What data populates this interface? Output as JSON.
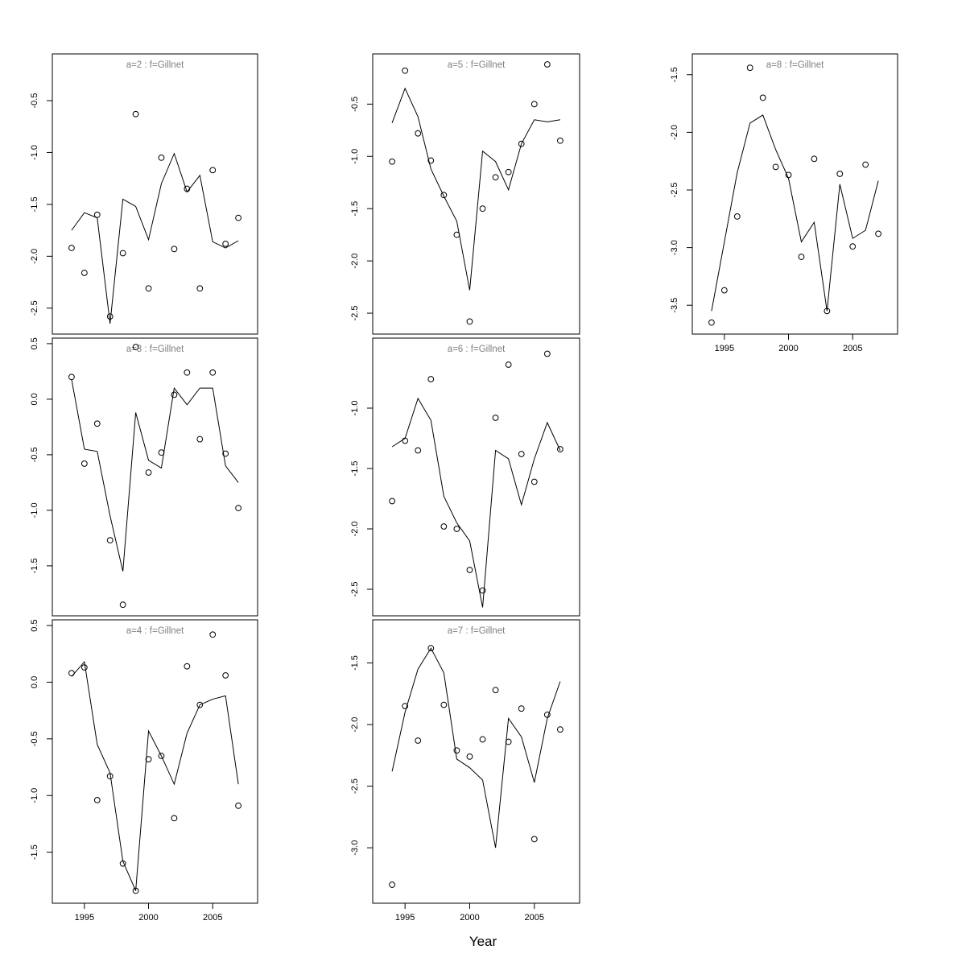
{
  "figure": {
    "background": "#ffffff",
    "title_color": "#808080",
    "line_color": "#000000",
    "point_color": "#000000",
    "axis_color": "#000000"
  },
  "chart_data": {
    "type": "line",
    "xlabel": "Year",
    "x": [
      1994,
      1995,
      1996,
      1997,
      1998,
      1999,
      2000,
      2001,
      2002,
      2003,
      2004,
      2005,
      2006,
      2007
    ],
    "x_ticks": [
      1995,
      2000,
      2005
    ],
    "xlim": [
      1992.5,
      2008.5
    ],
    "legend": "none",
    "grid": "off",
    "panels": [
      {
        "id": "a2",
        "title": "a=2  :  f=Gillnet",
        "col": 0,
        "row": 0,
        "show_x_axis": false,
        "ylim": [
          -2.75,
          -0.05
        ],
        "y_ticks": [
          -0.5,
          -1.0,
          -1.5,
          -2.0,
          -2.5
        ],
        "points": [
          -1.92,
          -2.16,
          -1.6,
          -2.58,
          -1.97,
          -0.63,
          -2.31,
          -1.05,
          -1.93,
          -1.35,
          -2.31,
          -1.17,
          -1.88,
          -1.63
        ],
        "line": [
          -1.75,
          -1.58,
          -1.63,
          -2.65,
          -1.45,
          -1.52,
          -1.84,
          -1.3,
          -1.01,
          -1.38,
          -1.22,
          -1.86,
          -1.92,
          -1.85
        ]
      },
      {
        "id": "a3",
        "title": "a=3  :  f=Gillnet",
        "col": 0,
        "row": 1,
        "show_x_axis": false,
        "ylim": [
          -1.95,
          0.55
        ],
        "y_ticks": [
          0.5,
          0.0,
          -0.5,
          -1.0,
          -1.5
        ],
        "points": [
          0.2,
          -0.58,
          -0.22,
          -1.27,
          -1.85,
          0.47,
          -0.66,
          -0.48,
          0.04,
          0.24,
          -0.36,
          0.24,
          -0.49,
          -0.98
        ],
        "line": [
          0.18,
          -0.45,
          -0.47,
          -1.05,
          -1.55,
          -0.12,
          -0.55,
          -0.62,
          0.1,
          -0.05,
          0.1,
          0.1,
          -0.6,
          -0.75
        ]
      },
      {
        "id": "a4",
        "title": "a=4  :  f=Gillnet",
        "col": 0,
        "row": 2,
        "show_x_axis": true,
        "ylim": [
          -1.95,
          0.55
        ],
        "y_ticks": [
          0.5,
          0.0,
          -0.5,
          -1.0,
          -1.5
        ],
        "points": [
          0.08,
          0.13,
          -1.04,
          -0.83,
          -1.6,
          -1.84,
          -0.68,
          -0.65,
          -1.2,
          0.14,
          -0.2,
          0.42,
          0.06,
          -1.09
        ],
        "line": [
          0.05,
          0.18,
          -0.55,
          -0.8,
          -1.58,
          -1.84,
          -0.43,
          -0.65,
          -0.9,
          -0.45,
          -0.2,
          -0.15,
          -0.12,
          -0.9
        ]
      },
      {
        "id": "a5",
        "title": "a=5  :  f=Gillnet",
        "col": 1,
        "row": 0,
        "show_x_axis": false,
        "ylim": [
          -2.7,
          -0.02
        ],
        "y_ticks": [
          -0.5,
          -1.0,
          -1.5,
          -2.0,
          -2.5
        ],
        "points": [
          -1.05,
          -0.18,
          -0.78,
          -1.04,
          -1.37,
          -1.75,
          -2.58,
          -1.5,
          -1.2,
          -1.15,
          -0.88,
          -0.5,
          -0.12,
          -0.85
        ],
        "line": [
          -0.68,
          -0.35,
          -0.62,
          -1.12,
          -1.38,
          -1.62,
          -2.28,
          -0.95,
          -1.05,
          -1.32,
          -0.88,
          -0.65,
          -0.67,
          -0.65
        ]
      },
      {
        "id": "a6",
        "title": "a=6  :  f=Gillnet",
        "col": 1,
        "row": 1,
        "show_x_axis": false,
        "ylim": [
          -2.72,
          -0.42
        ],
        "y_ticks": [
          -1.0,
          -1.5,
          -2.0,
          -2.5
        ],
        "points": [
          -1.77,
          -1.27,
          -1.35,
          -0.76,
          -1.98,
          -2.0,
          -2.34,
          -2.51,
          -1.08,
          -0.64,
          -1.38,
          -1.61,
          -0.55,
          -1.34
        ],
        "line": [
          -1.32,
          -1.25,
          -0.92,
          -1.1,
          -1.73,
          -1.95,
          -2.1,
          -2.65,
          -1.35,
          -1.42,
          -1.8,
          -1.42,
          -1.12,
          -1.35
        ]
      },
      {
        "id": "a7",
        "title": "a=7  :  f=Gillnet",
        "col": 1,
        "row": 2,
        "show_x_axis": true,
        "ylim": [
          -3.45,
          -1.15
        ],
        "y_ticks": [
          -1.5,
          -2.0,
          -2.5,
          -3.0
        ],
        "points": [
          -3.3,
          -1.85,
          -2.13,
          -1.38,
          -1.84,
          -2.21,
          -2.26,
          -2.12,
          -1.72,
          -2.14,
          -1.87,
          -2.93,
          -1.92,
          -2.04
        ],
        "line": [
          -2.38,
          -1.9,
          -1.55,
          -1.38,
          -1.58,
          -2.28,
          -2.35,
          -2.45,
          -3.0,
          -1.95,
          -2.1,
          -2.47,
          -1.95,
          -1.65
        ]
      },
      {
        "id": "a8",
        "title": "a=8  :  f=Gillnet",
        "col": 2,
        "row": 0,
        "show_x_axis": true,
        "ylim": [
          -3.75,
          -1.32
        ],
        "y_ticks": [
          -1.5,
          -2.0,
          -2.5,
          -3.0,
          -3.5
        ],
        "points": [
          -3.65,
          -3.37,
          -2.73,
          -1.44,
          -1.7,
          -2.3,
          -2.37,
          -3.08,
          -2.23,
          -3.55,
          -2.36,
          -2.99,
          -2.28,
          -2.88
        ],
        "line": [
          -3.55,
          -2.95,
          -2.35,
          -1.92,
          -1.85,
          -2.15,
          -2.4,
          -2.95,
          -2.78,
          -3.55,
          -2.45,
          -2.92,
          -2.85,
          -2.42
        ]
      }
    ]
  }
}
